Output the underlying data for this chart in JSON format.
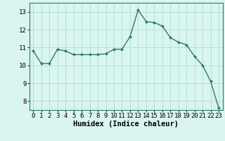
{
  "x": [
    0,
    1,
    2,
    3,
    4,
    5,
    6,
    7,
    8,
    9,
    10,
    11,
    12,
    13,
    14,
    15,
    16,
    17,
    18,
    19,
    20,
    21,
    22,
    23
  ],
  "y": [
    10.8,
    10.1,
    10.1,
    10.9,
    10.8,
    10.6,
    10.6,
    10.6,
    10.6,
    10.65,
    10.9,
    10.9,
    11.6,
    13.1,
    12.45,
    12.4,
    12.2,
    11.55,
    11.3,
    11.15,
    10.5,
    10.0,
    9.1,
    7.6
  ],
  "xlabel": "Humidex (Indice chaleur)",
  "ylim": [
    7.5,
    13.5
  ],
  "xlim": [
    -0.5,
    23.5
  ],
  "yticks": [
    8,
    9,
    10,
    11,
    12,
    13
  ],
  "xtick_labels": [
    "0",
    "1",
    "2",
    "3",
    "4",
    "5",
    "6",
    "7",
    "8",
    "9",
    "10",
    "11",
    "12",
    "13",
    "14",
    "15",
    "16",
    "17",
    "18",
    "19",
    "20",
    "21",
    "22",
    "23"
  ],
  "line_color": "#2d7a6a",
  "marker_color": "#2d7a6a",
  "bg_color": "#d8f5f0",
  "grid_color": "#b8ddd8",
  "axis_label_fontsize": 7.5,
  "tick_fontsize": 6.5
}
